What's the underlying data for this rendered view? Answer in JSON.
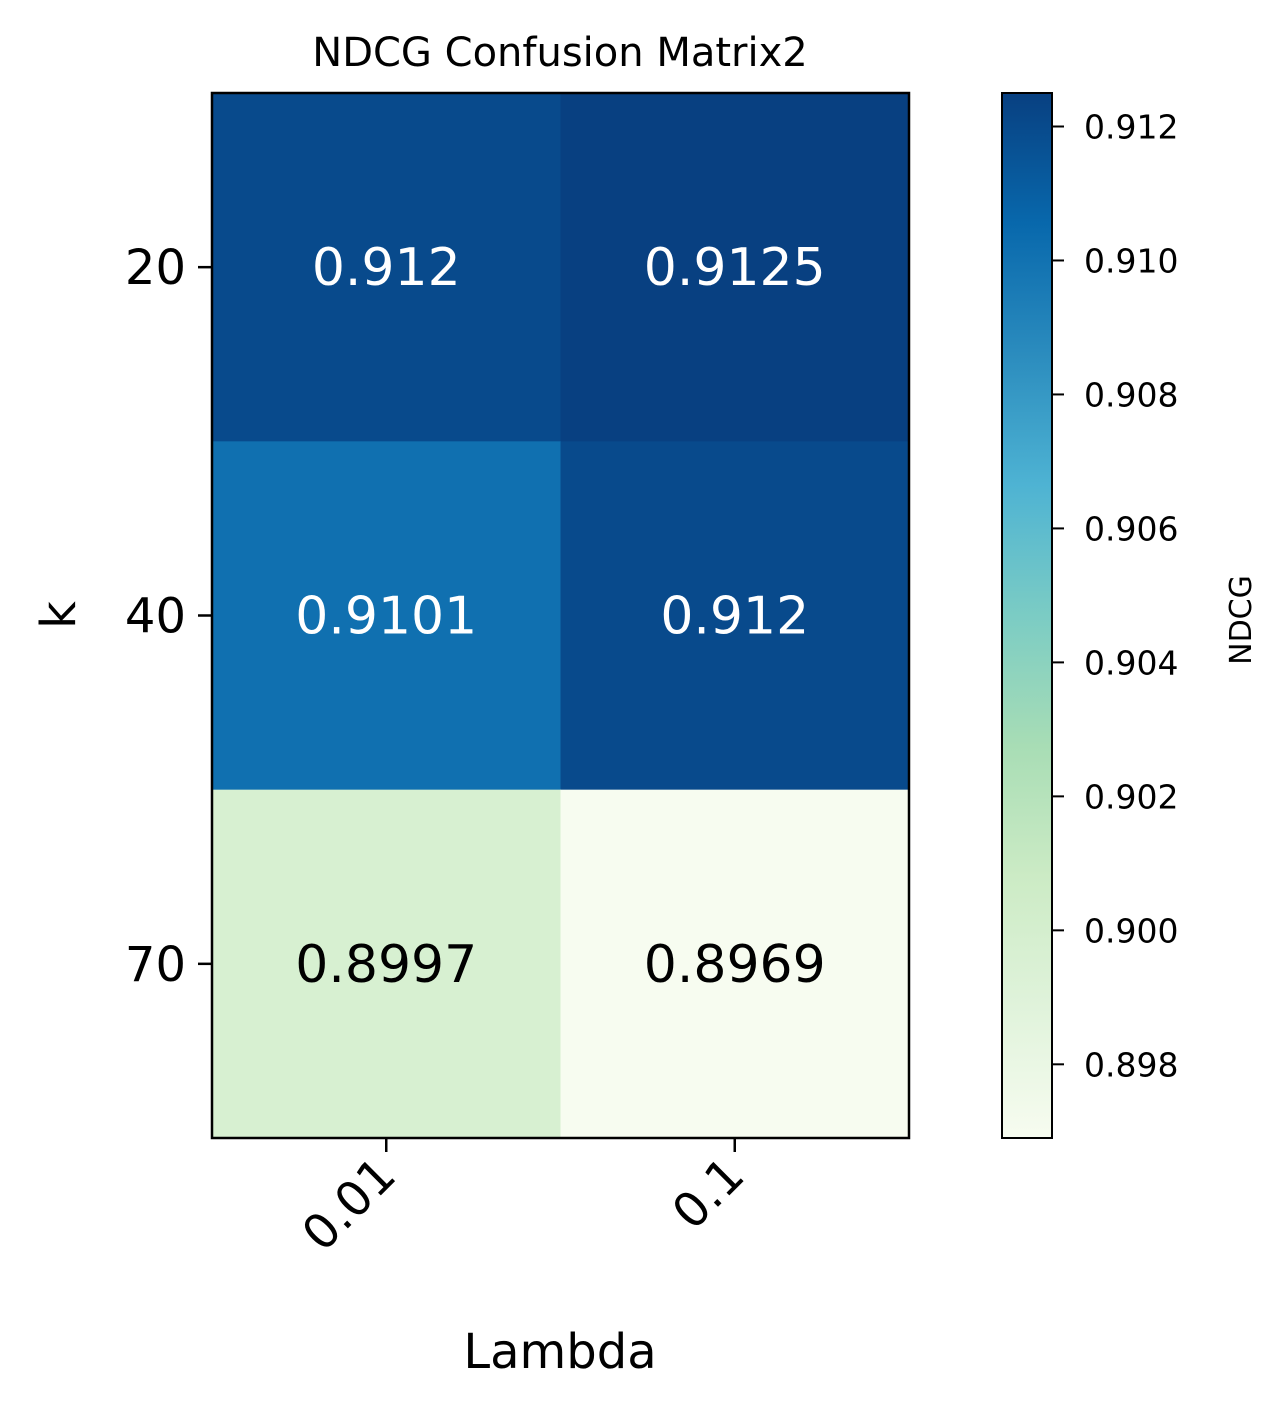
{
  "chart_data": {
    "type": "heatmap",
    "title": "NDCG Confusion Matrix2",
    "xlabel": "Lambda",
    "ylabel": "k",
    "x_categories": [
      "0.01",
      "0.1"
    ],
    "y_categories": [
      "20",
      "40",
      "70"
    ],
    "values": [
      [
        0.912,
        0.9125
      ],
      [
        0.9101,
        0.912
      ],
      [
        0.8997,
        0.8969
      ]
    ],
    "value_labels": [
      [
        "0.912",
        "0.9125"
      ],
      [
        "0.9101",
        "0.912"
      ],
      [
        "0.8997",
        "0.8969"
      ]
    ],
    "colorbar": {
      "label": "NDCG",
      "vmin": 0.8969,
      "vmax": 0.9125,
      "ticks": [
        0.898,
        0.9,
        0.902,
        0.904,
        0.906,
        0.908,
        0.91,
        0.912
      ],
      "tick_labels": [
        "0.898",
        "0.900",
        "0.902",
        "0.904",
        "0.906",
        "0.908",
        "0.910",
        "0.912"
      ],
      "colormap": "GnBu",
      "stops": [
        "#f7fcf0",
        "#e0f3db",
        "#ccebc5",
        "#a8ddb5",
        "#7bccc4",
        "#4eb3d3",
        "#2b8cbe",
        "#0868ac",
        "#084081"
      ]
    },
    "grid": false,
    "legend": "none"
  }
}
